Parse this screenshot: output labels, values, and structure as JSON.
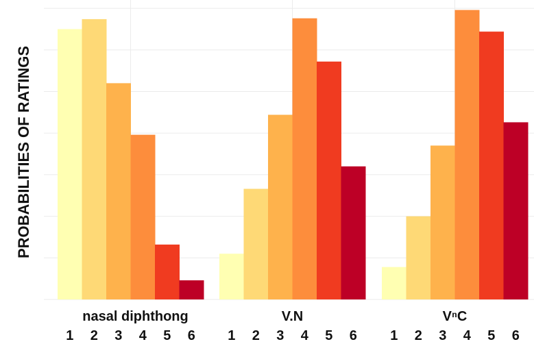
{
  "chart_data": {
    "type": "bar",
    "ylabel": "PROBABILITIES OF RATINGS",
    "xlabel": "",
    "grid": true,
    "ylim": [
      0,
      0.36
    ],
    "rating_labels": [
      "1",
      "2",
      "3",
      "4",
      "5",
      "6"
    ],
    "colors": [
      "#FFFFB2",
      "#FED976",
      "#FEB24C",
      "#FD8D3C",
      "#F03B20",
      "#BD0026"
    ],
    "groups": [
      {
        "name": "nasal diphthong",
        "values": [
          0.325,
          0.337,
          0.26,
          0.198,
          0.066,
          0.023
        ]
      },
      {
        "name": "V.N",
        "values": [
          0.055,
          0.133,
          0.222,
          0.338,
          0.286,
          0.16
        ]
      },
      {
        "name": "VⁿC",
        "values": [
          0.039,
          0.1,
          0.185,
          0.348,
          0.322,
          0.213
        ]
      }
    ]
  }
}
